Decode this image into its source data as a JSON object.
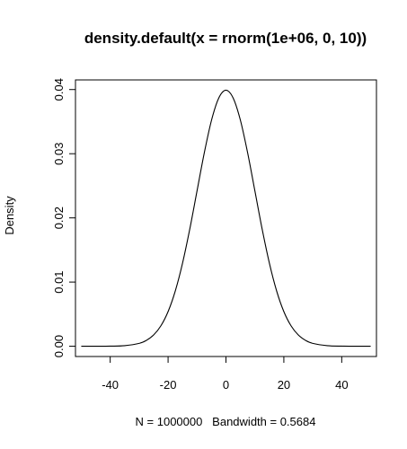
{
  "chart_data": {
    "type": "line",
    "title": "density.default(x = rnorm(1e+06, 0, 10))",
    "xlabel": "N = 1000000   Bandwidth = 0.5684",
    "ylabel": "Density",
    "xlim": [
      -52,
      52
    ],
    "ylim": [
      -0.0016,
      0.0415
    ],
    "x_ticks": [
      -40,
      -20,
      0,
      20,
      40
    ],
    "x_tick_labels": [
      "-40",
      "-20",
      "0",
      "20",
      "40"
    ],
    "y_ticks": [
      0,
      0.01,
      0.02,
      0.03,
      0.04
    ],
    "y_tick_labels": [
      "0.00",
      "0.01",
      "0.02",
      "0.03",
      "0.04"
    ],
    "grid": false,
    "series": [
      {
        "x": [
          -50,
          -45,
          -40,
          -35,
          -30,
          -27.5,
          -25,
          -22.5,
          -20,
          -17.5,
          -15,
          -12.5,
          -10,
          -7.5,
          -5,
          -2.5,
          0,
          2.5,
          5,
          7.5,
          10,
          12.5,
          15,
          17.5,
          20,
          22.5,
          25,
          27.5,
          30,
          35,
          40,
          45,
          50
        ],
        "y": [
          0.0,
          0.0,
          1.3e-05,
          8.7e-05,
          0.000443,
          0.000909,
          0.001753,
          0.003174,
          0.0054,
          0.008628,
          0.012952,
          0.018265,
          0.024197,
          0.030114,
          0.035207,
          0.038666,
          0.039894,
          0.038666,
          0.035207,
          0.030114,
          0.024197,
          0.018265,
          0.012952,
          0.008628,
          0.0054,
          0.003174,
          0.001753,
          0.000909,
          0.000443,
          8.7e-05,
          1.3e-05,
          0.0,
          0.0
        ]
      }
    ]
  }
}
